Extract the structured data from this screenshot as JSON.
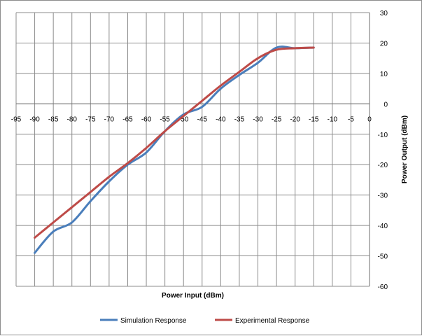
{
  "chart_data": {
    "type": "line",
    "xlabel": "Power Input (dBm)",
    "ylabel": "Power Output (dBm)",
    "xlim": [
      -95,
      0
    ],
    "ylim": [
      -60,
      30
    ],
    "x_ticks": [
      -95,
      -90,
      -85,
      -80,
      -75,
      -70,
      -65,
      -60,
      -55,
      -50,
      -45,
      -40,
      -35,
      -30,
      -25,
      -20,
      -15,
      -10,
      -5,
      0
    ],
    "y_ticks": [
      30,
      20,
      10,
      0,
      -10,
      -20,
      -30,
      -40,
      -50,
      -60
    ],
    "x_tick_labels": [
      "-95",
      "-90",
      "-85",
      "-80",
      "-75",
      "-70",
      "-65",
      "-60",
      "-55",
      "-50",
      "-45",
      "-40",
      "-35",
      "-30",
      "-25",
      "-20",
      "-15",
      "-10",
      "-5",
      "0"
    ],
    "y_tick_labels": [
      "30",
      "20",
      "10",
      "0",
      "-10",
      "-20",
      "-30",
      "-40",
      "-50",
      "-60"
    ],
    "grid": true,
    "legend_position": "bottom",
    "series": [
      {
        "name": "Simulation Response",
        "color": "#4a7ebb",
        "x": [
          -90,
          -85,
          -80,
          -75,
          -70,
          -65,
          -60,
          -55,
          -50,
          -45,
          -40,
          -35,
          -30,
          -25,
          -20,
          -15
        ],
        "y": [
          -49,
          -42,
          -39,
          -32,
          -25.5,
          -20,
          -16,
          -9,
          -3.5,
          -1,
          5,
          9.5,
          13.5,
          18.5,
          18.3,
          18.5
        ]
      },
      {
        "name": "Experimental Response",
        "color": "#be4b48",
        "x": [
          -90,
          -85,
          -80,
          -75,
          -70,
          -65,
          -60,
          -55,
          -50,
          -45,
          -40,
          -35,
          -30,
          -25,
          -20,
          -15
        ],
        "y": [
          -44,
          -39,
          -34,
          -29,
          -24,
          -19.5,
          -14.5,
          -9,
          -4,
          1,
          6,
          10.5,
          15,
          17.8,
          18.3,
          18.5
        ]
      }
    ]
  }
}
